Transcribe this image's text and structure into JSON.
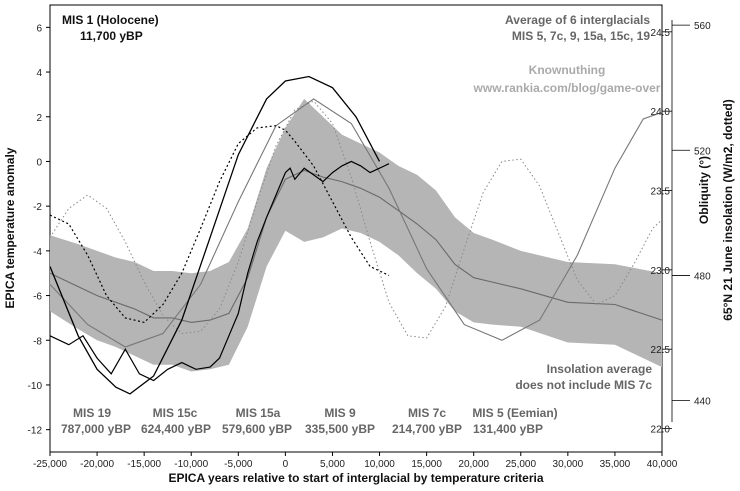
{
  "chart_data": {
    "type": "line",
    "title": "",
    "xlabel": "EPICA years relative to start of interglacial by temperature criteria",
    "ylabel": "EPICA temperature anomaly",
    "y2label": "Obliquity (°)",
    "y3label": "65°N 21 June insolation (W/m2, dotted)",
    "xlim": [
      -25000,
      40000
    ],
    "ylim": [
      -13,
      7
    ],
    "x_ticks": [
      -25000,
      -20000,
      -15000,
      -10000,
      -5000,
      0,
      5000,
      10000,
      15000,
      20000,
      25000,
      30000,
      35000,
      40000
    ],
    "x_tick_labels": [
      "-25,000",
      "-20,000",
      "-15,000",
      "-10,000",
      "-5,000",
      "0",
      "5,000",
      "10,000",
      "15,000",
      "20,000",
      "25,000",
      "30,000",
      "35,000",
      "40,000"
    ],
    "y_ticks": [
      6,
      4,
      2,
      0,
      -2,
      -4,
      -6,
      -8,
      -10,
      -12
    ],
    "y_tick_labels": [
      "6",
      "4",
      "2",
      "0",
      "-2",
      "-4",
      "-6",
      "-8",
      "-10",
      "-12"
    ],
    "obliquity_ticks": [
      {
        "label": "24.5",
        "value": 5.8
      },
      {
        "label": "24.0",
        "value": 2.25
      },
      {
        "label": "23.5",
        "value": -1.3
      },
      {
        "label": "23.0",
        "value": -4.85
      },
      {
        "label": "22.5",
        "value": -8.4
      },
      {
        "label": "22.0",
        "value": -11.95
      }
    ],
    "insolation_ticks": [
      {
        "label": "560",
        "value": 6.1
      },
      {
        "label": "520",
        "value": 0.5
      },
      {
        "label": "480",
        "value": -5.1
      },
      {
        "label": "440",
        "value": -10.7
      }
    ],
    "annotations": {
      "mis1_title": "MIS 1 (Holocene)",
      "mis1_date": "11,700 yBP",
      "avg_title": "Average of 6 interglacials",
      "avg_list": "MIS 5, 7c, 9, 15a, 15c, 19",
      "credit_name": "Knownuthing",
      "credit_url": "www.rankia.com/blog/game-over",
      "insol_note_1": "Insolation average",
      "insol_note_2": "does not include MIS 7c"
    },
    "mis_labels": [
      {
        "name": "MIS 19",
        "date": "787,000 yBP"
      },
      {
        "name": "MIS 15c",
        "date": "624,400 yBP"
      },
      {
        "name": "MIS 15a",
        "date": "579,600 yBP"
      },
      {
        "name": "MIS 9",
        "date": "335,500 yBP"
      },
      {
        "name": "MIS 7c",
        "date": "214,700 yBP"
      },
      {
        "name": "MIS 5 (Eemian)",
        "date": "131,400 yBP"
      }
    ],
    "series": [
      {
        "name": "Average of 6 interglacials (±1 SD band)",
        "x": [
          -25000,
          -22000,
          -20000,
          -18000,
          -16000,
          -14000,
          -12000,
          -10000,
          -8000,
          -6000,
          -4000,
          -2000,
          0,
          2000,
          4000,
          6000,
          8000,
          10000,
          12000,
          14000,
          16000,
          18000,
          20000,
          22000,
          25000,
          30000,
          35000,
          40000
        ],
        "mean": [
          -5.0,
          -5.6,
          -6.0,
          -6.3,
          -6.6,
          -7.0,
          -7.0,
          -7.2,
          -7.1,
          -6.8,
          -5.2,
          -2.5,
          -0.8,
          -0.4,
          -0.7,
          -0.9,
          -1.2,
          -1.6,
          -2.2,
          -2.8,
          -3.5,
          -4.6,
          -5.2,
          -5.4,
          -5.7,
          -6.3,
          -6.4,
          -7.1
        ],
        "upper": [
          -3.3,
          -3.7,
          -4.0,
          -4.3,
          -4.5,
          -4.9,
          -4.9,
          -5.0,
          -4.9,
          -4.5,
          -3.0,
          -0.3,
          1.5,
          2.8,
          2.0,
          1.2,
          0.8,
          0.4,
          -0.2,
          -0.6,
          -1.3,
          -2.5,
          -3.2,
          -3.5,
          -4.0,
          -4.5,
          -4.6,
          -5.0
        ],
        "lower": [
          -6.7,
          -7.5,
          -8.0,
          -8.3,
          -8.7,
          -9.1,
          -9.1,
          -9.4,
          -9.3,
          -9.1,
          -7.4,
          -4.7,
          -3.1,
          -3.6,
          -3.4,
          -3.0,
          -3.2,
          -3.6,
          -4.2,
          -5.0,
          -5.7,
          -6.7,
          -7.2,
          -7.3,
          -7.4,
          -8.1,
          -8.2,
          -9.2
        ]
      },
      {
        "name": "MIS 1 (Holocene) EPICA temperature",
        "x": [
          -25000,
          -23000,
          -21500,
          -20000,
          -18500,
          -17000,
          -15500,
          -14000,
          -12500,
          -11000,
          -9500,
          -8000,
          -7000,
          -6000,
          -5000,
          -4000,
          -3000,
          -2000,
          -1000,
          0,
          500,
          1000,
          2000,
          3000,
          4000,
          5000,
          6000,
          7000,
          8000,
          9000,
          10000,
          11000
        ],
        "y": [
          -7.8,
          -8.2,
          -7.8,
          -8.8,
          -9.5,
          -8.4,
          -9.5,
          -9.8,
          -9.3,
          -9.0,
          -9.3,
          -9.2,
          -8.8,
          -7.8,
          -6.8,
          -5.0,
          -3.6,
          -2.5,
          -1.5,
          -0.5,
          -0.3,
          -0.8,
          -0.3,
          -0.6,
          -0.9,
          -0.5,
          -0.2,
          0.0,
          -0.2,
          -0.5,
          -0.3,
          -0.1
        ]
      },
      {
        "name": "MIS 1 obliquity (solid black)",
        "x": [
          -25000,
          -22000,
          -20000,
          -18000,
          -16500,
          -14000,
          -11000,
          -8000,
          -5000,
          -2000,
          0,
          2500,
          5000,
          7500,
          10000
        ],
        "y": [
          -4.7,
          -7.8,
          -9.3,
          -10.1,
          -10.4,
          -9.6,
          -7.1,
          -3.4,
          0.3,
          2.8,
          3.6,
          3.8,
          3.3,
          2.0,
          0.0
        ]
      },
      {
        "name": "MIS 1 insolation (dotted black)",
        "x": [
          -25000,
          -23000,
          -21000,
          -19000,
          -17000,
          -15000,
          -13000,
          -11000,
          -9000,
          -7000,
          -5000,
          -3000,
          -1000,
          0,
          1000,
          3000,
          5000,
          7000,
          9000,
          11000
        ],
        "y": [
          -2.4,
          -2.8,
          -4.2,
          -6.0,
          -7.0,
          -7.2,
          -6.4,
          -5.0,
          -3.0,
          -0.9,
          0.8,
          1.5,
          1.6,
          1.4,
          0.9,
          -0.2,
          -1.8,
          -3.4,
          -4.7,
          -5.1
        ]
      },
      {
        "name": "Average obliquity (solid grey)",
        "x": [
          -25000,
          -21000,
          -17000,
          -13000,
          -9000,
          -5000,
          -1000,
          3000,
          7000,
          11000,
          15000,
          19000,
          23000,
          27000,
          31000,
          35000,
          38000,
          40000
        ],
        "y": [
          -5.5,
          -7.3,
          -8.3,
          -7.7,
          -5.5,
          -1.8,
          1.6,
          2.8,
          1.7,
          -1.2,
          -4.8,
          -7.3,
          -8.0,
          -7.1,
          -4.2,
          -0.3,
          1.9,
          2.2
        ]
      },
      {
        "name": "Average insolation (dotted grey)",
        "x": [
          -25000,
          -23000,
          -21000,
          -19000,
          -17000,
          -15000,
          -13000,
          -11000,
          -9000,
          -7000,
          -5000,
          -3000,
          -1000,
          1000,
          3000,
          5000,
          7000,
          9000,
          11000,
          13000,
          15000,
          17000,
          19000,
          21000,
          23000,
          25000,
          27000,
          29000,
          31000,
          33000,
          35000,
          37000,
          39000,
          40000
        ],
        "y": [
          -3.4,
          -2.1,
          -1.5,
          -2.1,
          -3.6,
          -5.4,
          -6.9,
          -7.7,
          -7.6,
          -6.6,
          -4.5,
          -1.8,
          0.7,
          2.3,
          2.7,
          1.7,
          -0.7,
          -3.6,
          -6.3,
          -7.8,
          -7.9,
          -6.5,
          -3.9,
          -1.4,
          0.0,
          0.1,
          -1.1,
          -3.2,
          -5.3,
          -6.4,
          -6.0,
          -4.6,
          -3.0,
          -2.6
        ]
      }
    ]
  }
}
